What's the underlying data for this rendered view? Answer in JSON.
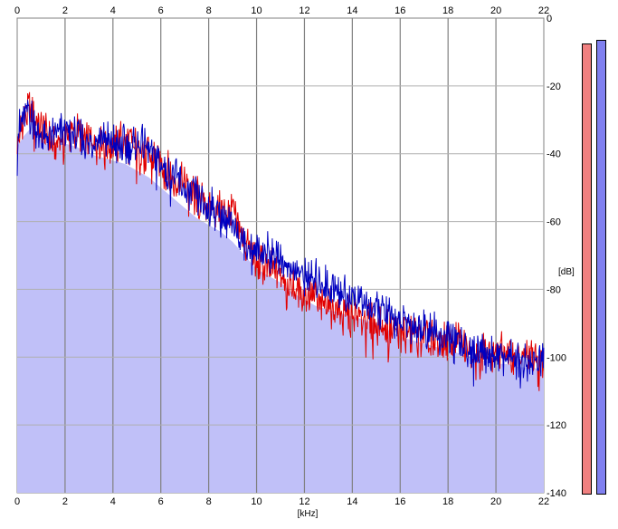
{
  "chart_data": {
    "type": "line",
    "xlabel": "[kHz]",
    "ylabel": "[dB]",
    "xlim": [
      0,
      22
    ],
    "ylim": [
      -140,
      0
    ],
    "x_ticks": [
      0,
      2,
      4,
      6,
      8,
      10,
      12,
      14,
      16,
      18,
      20,
      22
    ],
    "y_ticks": [
      0,
      -20,
      -40,
      -60,
      -80,
      -100,
      -120,
      -140
    ],
    "grid": true,
    "fill_color": "#c0c0f8",
    "x": [
      0,
      0.25,
      0.5,
      1,
      1.5,
      2,
      2.5,
      3,
      3.5,
      4,
      4.5,
      5,
      5.5,
      6,
      6.5,
      7,
      7.5,
      8,
      8.5,
      9,
      9.5,
      10,
      10.5,
      11,
      11.5,
      12,
      12.5,
      13,
      13.5,
      14,
      14.5,
      15,
      15.5,
      16,
      16.5,
      17,
      17.5,
      18,
      18.5,
      19,
      19.5,
      20,
      20.5,
      21,
      21.5,
      22
    ],
    "series": [
      {
        "color": "#e00000",
        "values": [
          -38,
          -30,
          -26,
          -33,
          -37,
          -35,
          -34,
          -36,
          -37,
          -38,
          -36,
          -38,
          -40,
          -43,
          -47,
          -49,
          -53,
          -55,
          -57,
          -58,
          -66,
          -72,
          -74,
          -75,
          -80,
          -81,
          -83,
          -85,
          -86,
          -88,
          -89,
          -90,
          -91,
          -93,
          -94,
          -94,
          -95,
          -96,
          -96,
          -98,
          -98,
          -99,
          -99,
          -100,
          -100,
          -101
        ]
      },
      {
        "color": "#0000c0",
        "values": [
          -34,
          -30,
          -28,
          -35,
          -35,
          -33,
          -35,
          -37,
          -35,
          -37,
          -38,
          -37,
          -39,
          -43,
          -46,
          -51,
          -53,
          -56,
          -58,
          -61,
          -66,
          -68,
          -69,
          -71,
          -74,
          -76,
          -77,
          -79,
          -81,
          -82,
          -84,
          -86,
          -88,
          -90,
          -91,
          -92,
          -93,
          -95,
          -96,
          -98,
          -99,
          -100,
          -100,
          -101,
          -101,
          -101
        ]
      }
    ],
    "fill_values": [
      -38,
      -35,
      -33,
      -36,
      -38,
      -37,
      -38,
      -40,
      -41,
      -42,
      -43,
      -45,
      -47,
      -50,
      -53,
      -56,
      -59,
      -61,
      -63,
      -66,
      -70,
      -74,
      -76,
      -78,
      -81,
      -83,
      -85,
      -86,
      -87,
      -88,
      -89,
      -90,
      -92,
      -94,
      -95,
      -96,
      -97,
      -98,
      -99,
      -100,
      -101,
      -102,
      -102,
      -103,
      -103,
      -104
    ]
  },
  "meters": {
    "left": {
      "color": "#f08080",
      "level_db": -7.5
    },
    "right": {
      "color": "#8080f0",
      "level_db": -6.5
    }
  }
}
